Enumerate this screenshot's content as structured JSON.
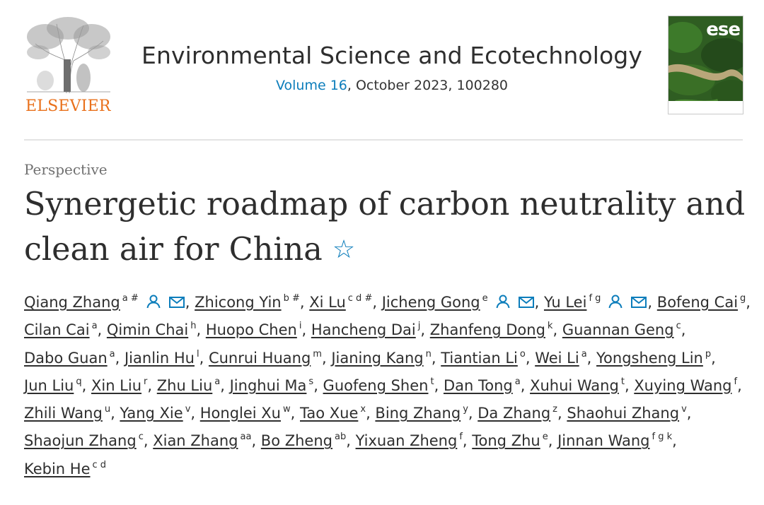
{
  "header": {
    "publisher": "ELSEVIER",
    "journal_title": "Environmental Science and Ecotechnology",
    "volume_link": "Volume 16",
    "citation_rest": ", October 2023, 100280",
    "cover_badge": "ese"
  },
  "article": {
    "type_label": "Perspective",
    "title": "Synergetic roadmap of carbon neutrality and clean air for China"
  },
  "colors": {
    "link_blue": "#0c7dbb",
    "elsevier_orange": "#e9711c",
    "text": "#2e2e2e"
  },
  "authors": [
    {
      "name": "Qiang Zhang",
      "sup": "a #",
      "icons": [
        "person-icon",
        "envelope-icon"
      ]
    },
    {
      "name": "Zhicong Yin",
      "sup": "b #"
    },
    {
      "name": "Xi Lu",
      "sup": "c d #"
    },
    {
      "name": "Jicheng Gong",
      "sup": "e",
      "icons": [
        "person-icon",
        "envelope-icon"
      ]
    },
    {
      "name": "Yu Lei",
      "sup": "f g",
      "icons": [
        "person-icon",
        "envelope-icon"
      ]
    },
    {
      "name": "Bofeng Cai",
      "sup": "g"
    },
    {
      "name": "Cilan Cai",
      "sup": "a"
    },
    {
      "name": "Qimin Chai",
      "sup": "h"
    },
    {
      "name": "Huopo Chen",
      "sup": "i"
    },
    {
      "name": "Hancheng Dai",
      "sup": "j"
    },
    {
      "name": "Zhanfeng Dong",
      "sup": "k"
    },
    {
      "name": "Guannan Geng",
      "sup": "c"
    },
    {
      "name": "Dabo Guan",
      "sup": "a"
    },
    {
      "name": "Jianlin Hu",
      "sup": "l"
    },
    {
      "name": "Cunrui Huang",
      "sup": "m"
    },
    {
      "name": "Jianing Kang",
      "sup": "n"
    },
    {
      "name": "Tiantian Li",
      "sup": "o"
    },
    {
      "name": "Wei Li",
      "sup": "a"
    },
    {
      "name": "Yongsheng Lin",
      "sup": "p"
    },
    {
      "name": "Jun Liu",
      "sup": "q"
    },
    {
      "name": "Xin Liu",
      "sup": "r"
    },
    {
      "name": "Zhu Liu",
      "sup": "a"
    },
    {
      "name": "Jinghui Ma",
      "sup": "s"
    },
    {
      "name": "Guofeng Shen",
      "sup": "t"
    },
    {
      "name": "Dan Tong",
      "sup": "a"
    },
    {
      "name": "Xuhui Wang",
      "sup": "t"
    },
    {
      "name": "Xuying Wang",
      "sup": "f"
    },
    {
      "name": "Zhili Wang",
      "sup": "u"
    },
    {
      "name": "Yang Xie",
      "sup": "v"
    },
    {
      "name": "Honglei Xu",
      "sup": "w"
    },
    {
      "name": "Tao Xue",
      "sup": "x"
    },
    {
      "name": "Bing Zhang",
      "sup": "y"
    },
    {
      "name": "Da Zhang",
      "sup": "z"
    },
    {
      "name": "Shaohui Zhang",
      "sup": "v"
    },
    {
      "name": "Shaojun Zhang",
      "sup": "c"
    },
    {
      "name": "Xian Zhang",
      "sup": "aa"
    },
    {
      "name": "Bo Zheng",
      "sup": "ab"
    },
    {
      "name": "Yixuan Zheng",
      "sup": "f"
    },
    {
      "name": "Tong Zhu",
      "sup": "e"
    },
    {
      "name": "Jinnan Wang",
      "sup": "f g k"
    },
    {
      "name": "Kebin He",
      "sup": "c d"
    }
  ]
}
